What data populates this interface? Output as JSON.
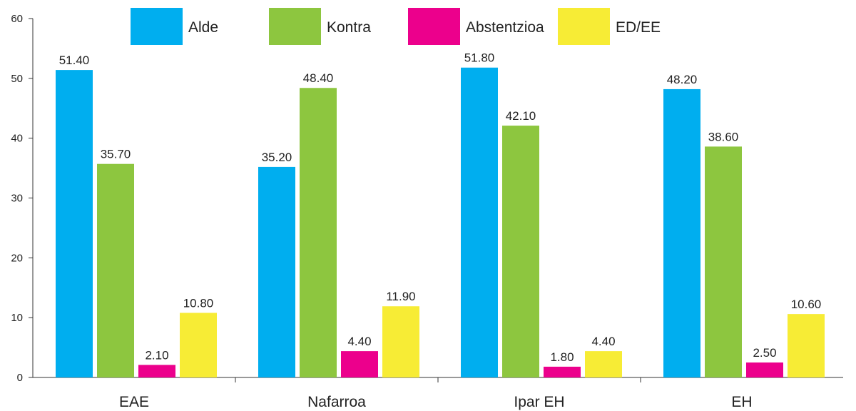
{
  "chart_data": {
    "type": "bar",
    "title": "",
    "xlabel": "",
    "ylabel": "",
    "ylim": [
      0,
      60
    ],
    "yticks": [
      0,
      10,
      20,
      30,
      40,
      50,
      60
    ],
    "grid": false,
    "legend_position": "top",
    "categories": [
      "EAE",
      "Nafarroa",
      "Ipar EH",
      "EH"
    ],
    "series": [
      {
        "name": "Alde",
        "color": "#00aeef",
        "values": [
          51.4,
          35.2,
          51.8,
          48.2
        ],
        "labels": [
          "51.40",
          "35.20",
          "51.80",
          "48.20"
        ]
      },
      {
        "name": "Kontra",
        "color": "#8dc63f",
        "values": [
          35.7,
          48.4,
          42.1,
          38.6
        ],
        "labels": [
          "35.70",
          "48.40",
          "42.10",
          "38.60"
        ]
      },
      {
        "name": "Abstentzioa",
        "color": "#ec008c",
        "values": [
          2.1,
          4.4,
          1.8,
          2.5
        ],
        "labels": [
          "2.10",
          "4.40",
          "1.80",
          "2.50"
        ]
      },
      {
        "name": "ED/EE",
        "color": "#f7ec35",
        "values": [
          10.8,
          11.9,
          4.4,
          10.6
        ],
        "labels": [
          "10.80",
          "11.90",
          "4.40",
          "10.60"
        ]
      }
    ]
  }
}
